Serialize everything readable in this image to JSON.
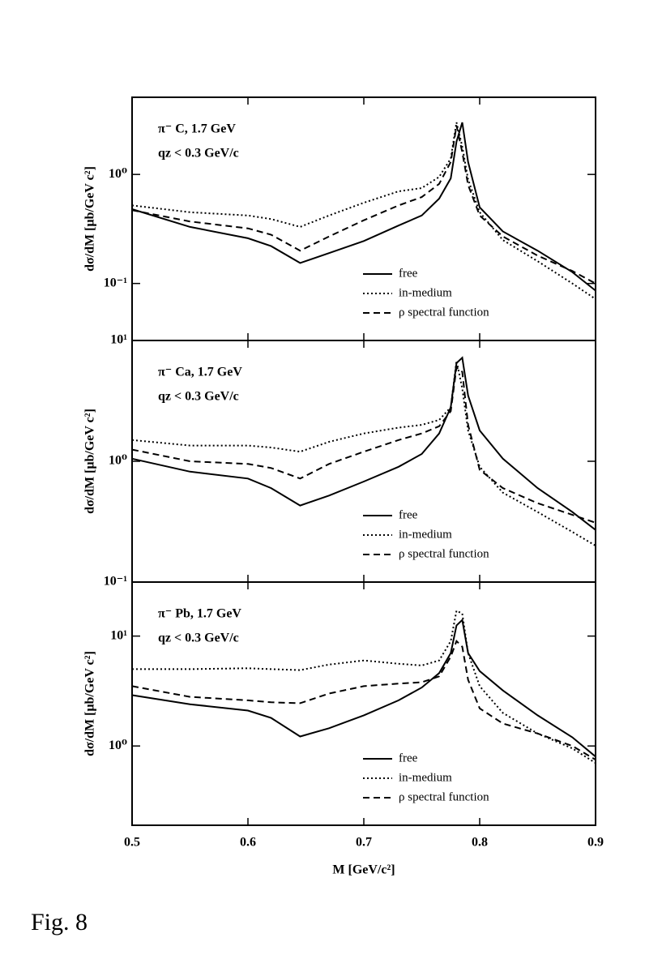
{
  "caption": "Fig. 8",
  "chart_data": [
    {
      "type": "line",
      "title": "π⁻ C,  1.7 GeV",
      "subtitle": "qz < 0.3 GeV/c",
      "ylabel": "dσ/dM [μb/GeV c²]",
      "log_y": true,
      "xlim": [
        0.5,
        0.9
      ],
      "xticks": [
        0.5,
        0.6,
        0.7,
        0.8,
        0.9
      ],
      "ylim": [
        0.03,
        5.1
      ],
      "yticks": [
        {
          "value": 0.1,
          "label": "10⁻¹"
        },
        {
          "value": 1,
          "label": "10⁰"
        }
      ],
      "legend": "lower right",
      "x": [
        0.5,
        0.55,
        0.6,
        0.62,
        0.645,
        0.67,
        0.7,
        0.73,
        0.75,
        0.765,
        0.775,
        0.78,
        0.785,
        0.79,
        0.8,
        0.82,
        0.85,
        0.88,
        0.9
      ],
      "series": [
        {
          "name": "free",
          "color": "#000000",
          "dash": "solid",
          "values": [
            0.48,
            0.33,
            0.26,
            0.22,
            0.154,
            0.19,
            0.245,
            0.34,
            0.42,
            0.6,
            0.92,
            2.0,
            3.0,
            1.3,
            0.5,
            0.3,
            0.2,
            0.127,
            0.086
          ]
        },
        {
          "name": "in-medium",
          "color": "#000000",
          "dash": "dotted",
          "values": [
            0.52,
            0.45,
            0.42,
            0.39,
            0.33,
            0.42,
            0.55,
            0.7,
            0.75,
            0.95,
            1.4,
            3.0,
            1.8,
            0.9,
            0.45,
            0.25,
            0.16,
            0.1,
            0.072
          ]
        },
        {
          "name": "ρ spectral function",
          "color": "#000000",
          "dash": "dashed",
          "values": [
            0.47,
            0.37,
            0.32,
            0.28,
            0.2,
            0.27,
            0.38,
            0.52,
            0.62,
            0.82,
            1.3,
            2.8,
            1.6,
            0.8,
            0.42,
            0.27,
            0.18,
            0.13,
            0.1
          ]
        }
      ]
    },
    {
      "type": "line",
      "title": "π⁻ Ca,  1.7 GeV",
      "subtitle": "qz < 0.3 GeV/c",
      "ylabel": "dσ/dM [μb/GeV c²]",
      "log_y": true,
      "xlim": [
        0.5,
        0.9
      ],
      "xticks": [
        0.5,
        0.6,
        0.7,
        0.8,
        0.9
      ],
      "ylim": [
        0.1,
        10
      ],
      "yticks": [
        {
          "value": 0.1,
          "label": "10⁻¹"
        },
        {
          "value": 1,
          "label": "10⁰"
        },
        {
          "value": 10,
          "label": "10¹"
        }
      ],
      "legend": "lower right",
      "x": [
        0.5,
        0.55,
        0.6,
        0.62,
        0.645,
        0.67,
        0.7,
        0.73,
        0.75,
        0.765,
        0.775,
        0.78,
        0.785,
        0.79,
        0.8,
        0.82,
        0.85,
        0.88,
        0.9
      ],
      "series": [
        {
          "name": "free",
          "color": "#000000",
          "dash": "solid",
          "values": [
            1.05,
            0.82,
            0.72,
            0.6,
            0.43,
            0.52,
            0.68,
            0.9,
            1.15,
            1.7,
            2.8,
            6.5,
            7.2,
            3.5,
            1.8,
            1.05,
            0.6,
            0.38,
            0.27
          ]
        },
        {
          "name": "in-medium",
          "color": "#000000",
          "dash": "dotted",
          "values": [
            1.5,
            1.35,
            1.35,
            1.3,
            1.2,
            1.45,
            1.7,
            1.9,
            2.0,
            2.2,
            2.8,
            6.8,
            4,
            1.8,
            0.9,
            0.55,
            0.38,
            0.26,
            0.2
          ]
        },
        {
          "name": "ρ spectral function",
          "color": "#000000",
          "dash": "dashed",
          "values": [
            1.25,
            1.0,
            0.95,
            0.88,
            0.72,
            0.95,
            1.2,
            1.5,
            1.7,
            1.95,
            2.6,
            6.0,
            5.5,
            2.0,
            0.85,
            0.6,
            0.45,
            0.36,
            0.31
          ]
        }
      ]
    },
    {
      "type": "line",
      "title": "π⁻ Pb,  1.7 GeV",
      "subtitle": "qz < 0.3 GeV/c",
      "ylabel": "dσ/dM [μb/GeV c²]",
      "xlabel": "M [GeV/c²]",
      "log_y": true,
      "xlim": [
        0.5,
        0.9
      ],
      "xticks": [
        0.5,
        0.6,
        0.7,
        0.8,
        0.9
      ],
      "ylim": [
        0.19,
        31
      ],
      "yticks": [
        {
          "value": 1,
          "label": "10⁰"
        },
        {
          "value": 10,
          "label": "10¹"
        }
      ],
      "legend": "lower right",
      "x": [
        0.5,
        0.55,
        0.6,
        0.62,
        0.645,
        0.67,
        0.7,
        0.73,
        0.75,
        0.765,
        0.775,
        0.78,
        0.785,
        0.79,
        0.8,
        0.82,
        0.85,
        0.88,
        0.9
      ],
      "series": [
        {
          "name": "free",
          "color": "#000000",
          "dash": "solid",
          "values": [
            2.9,
            2.4,
            2.1,
            1.8,
            1.22,
            1.45,
            1.9,
            2.6,
            3.4,
            4.6,
            7,
            12.5,
            14,
            7,
            4.8,
            3.2,
            1.9,
            1.2,
            0.8
          ]
        },
        {
          "name": "in-medium",
          "color": "#000000",
          "dash": "dotted",
          "values": [
            5.0,
            5.0,
            5.1,
            5.0,
            4.9,
            5.5,
            6.0,
            5.6,
            5.4,
            6,
            9,
            17,
            16,
            7,
            3.5,
            2.0,
            1.3,
            0.95,
            0.7
          ]
        },
        {
          "name": "ρ spectral function",
          "color": "#000000",
          "dash": "dashed",
          "values": [
            3.5,
            2.8,
            2.6,
            2.5,
            2.45,
            3.0,
            3.5,
            3.7,
            3.8,
            4.3,
            6.5,
            9,
            8,
            4,
            2.2,
            1.6,
            1.3,
            1.0,
            0.75
          ]
        }
      ]
    }
  ]
}
